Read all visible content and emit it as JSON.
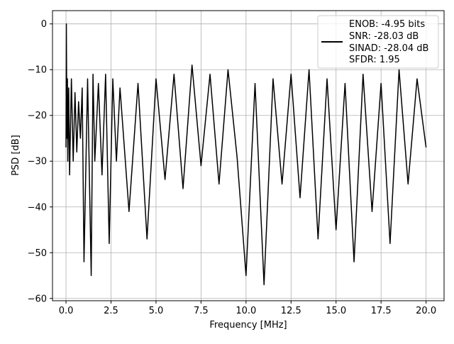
{
  "chart_data": {
    "type": "line",
    "xlabel": "Frequency [MHz]",
    "ylabel": "PSD [dB]",
    "xlim": [
      -0.75,
      21.0
    ],
    "ylim": [
      -60.5,
      2.9
    ],
    "x_ticks": [
      0.0,
      2.5,
      5.0,
      7.5,
      10.0,
      12.5,
      15.0,
      17.5,
      20.0
    ],
    "x_tick_labels": [
      "0.0",
      "2.5",
      "5.0",
      "7.5",
      "10.0",
      "12.5",
      "15.0",
      "17.5",
      "20.0"
    ],
    "y_ticks": [
      0,
      -10,
      -20,
      -30,
      -40,
      -50,
      -60
    ],
    "y_tick_labels": [
      "0",
      "−10",
      "−20",
      "−30",
      "−40",
      "−50",
      "−60"
    ],
    "grid": true,
    "legend_position": "top-right",
    "legend": {
      "lines": [
        "ENOB: -4.95 bits",
        "SNR: -28.03 dB",
        "SINAD: -28.04 dB",
        "SFDR: 1.95"
      ]
    },
    "series": [
      {
        "color": "#000000",
        "x": [
          0.0,
          0.02,
          0.05,
          0.08,
          0.1,
          0.15,
          0.2,
          0.3,
          0.4,
          0.5,
          0.6,
          0.7,
          0.8,
          0.9,
          1.0,
          1.2,
          1.4,
          1.5,
          1.6,
          1.8,
          2.0,
          2.2,
          2.4,
          2.6,
          2.8,
          3.0,
          3.5,
          4.0,
          4.5,
          5.0,
          5.5,
          6.0,
          6.5,
          7.0,
          7.5,
          8.0,
          8.5,
          9.0,
          9.5,
          10.0,
          10.5,
          11.0,
          11.5,
          12.0,
          12.5,
          13.0,
          13.5,
          14.0,
          14.5,
          15.0,
          15.5,
          16.0,
          16.5,
          17.0,
          17.5,
          18.0,
          18.5,
          19.0,
          19.5,
          20.0
        ],
        "y": [
          -27,
          0,
          -25,
          -12,
          -30,
          -14,
          -33,
          -12,
          -30,
          -15,
          -28,
          -17,
          -25,
          -14,
          -52,
          -12,
          -55,
          -11,
          -30,
          -13,
          -33,
          -11,
          -48,
          -12,
          -30,
          -14,
          -41,
          -13,
          -47,
          -12,
          -34,
          -11,
          -36,
          -9,
          -31,
          -11,
          -35,
          -10,
          -29,
          -55,
          -13,
          -57,
          -12,
          -35,
          -11,
          -38,
          -10,
          -47,
          -12,
          -45,
          -13,
          -52,
          -11,
          -41,
          -13,
          -48,
          -10,
          -35,
          -12,
          -27
        ]
      }
    ]
  }
}
